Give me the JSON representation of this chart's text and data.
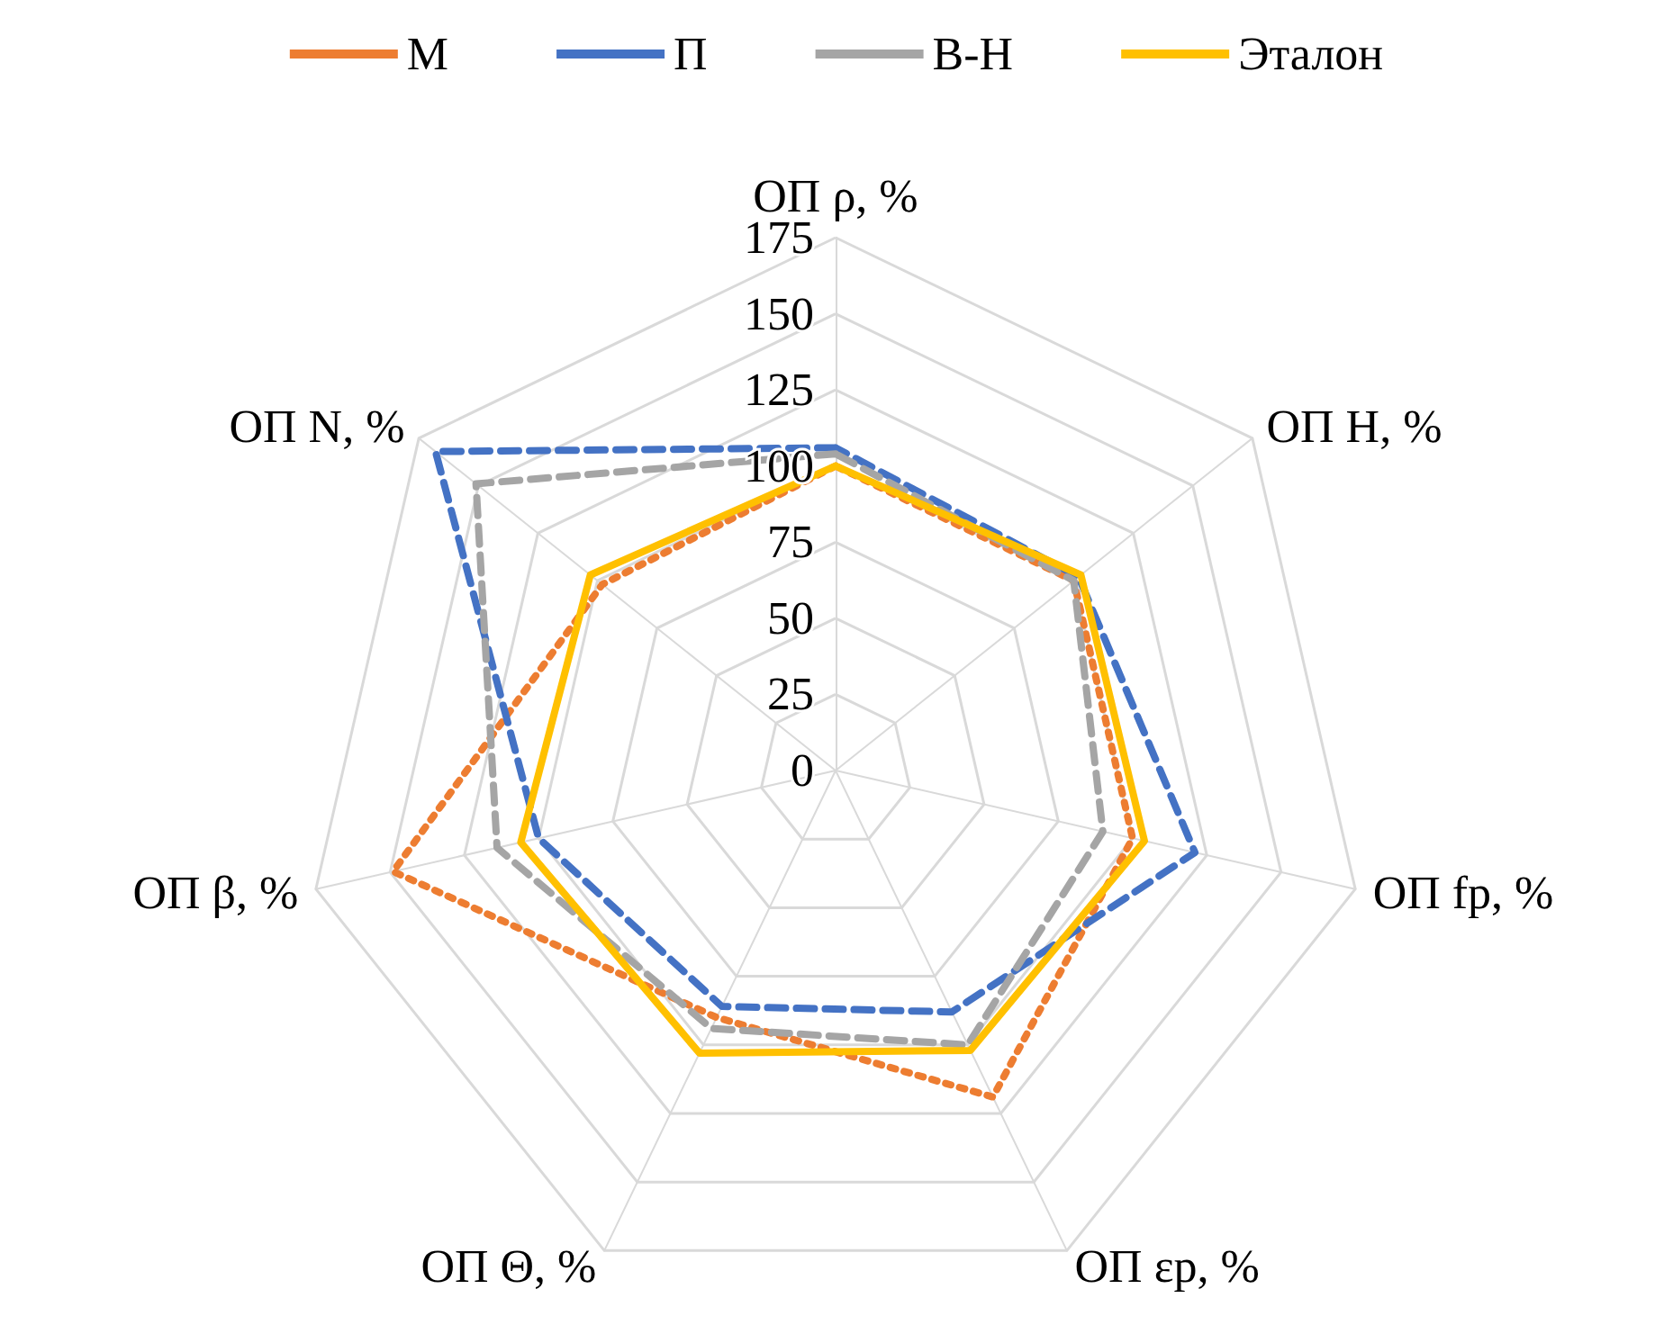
{
  "chart_data": {
    "type": "radar",
    "categories": [
      "ОП ρ, %",
      "ОП H, %",
      "ОП fр, %",
      "ОП εр, %",
      "ОП Θ, %",
      "ОП β, %",
      "ОП N, %"
    ],
    "ylim": [
      0,
      175
    ],
    "yticks": [
      0,
      25,
      50,
      75,
      100,
      125,
      150,
      175
    ],
    "grid": true,
    "legend": "top",
    "series": [
      {
        "name": "М",
        "color": "#ed7d31",
        "line_style": "dotted",
        "values": [
          100,
          100,
          100,
          119,
          90,
          149,
          98
        ]
      },
      {
        "name": "П",
        "color": "#4472c4",
        "line_style": "dashed",
        "values": [
          106,
          102,
          121,
          88,
          86,
          100,
          168
        ]
      },
      {
        "name": "В-Н",
        "color": "#a5a5a5",
        "line_style": "dashed",
        "values": [
          104,
          100,
          90,
          100,
          94,
          114,
          151
        ]
      },
      {
        "name": "Эталон",
        "color": "#ffc000",
        "line_style": "solid",
        "values": [
          100,
          103,
          104,
          102,
          103,
          106,
          103
        ]
      }
    ]
  }
}
